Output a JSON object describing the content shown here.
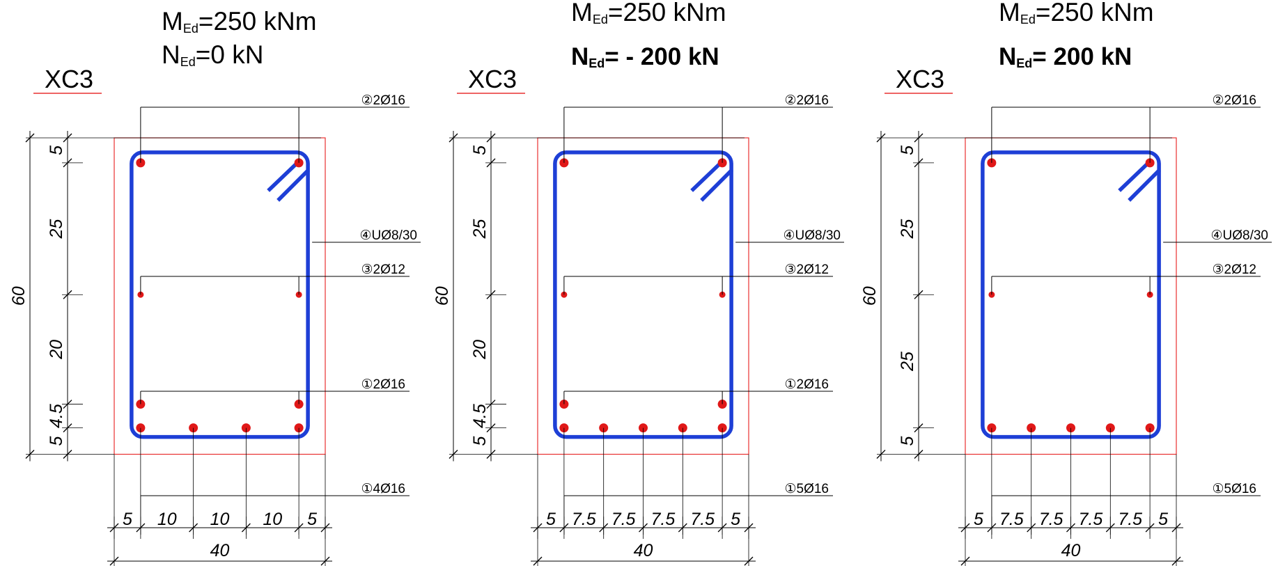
{
  "colors": {
    "stirrup": "#1e3fd6",
    "bar": "#e01818",
    "outline": "#e83030",
    "line": "#000000",
    "blue_text": "#1a2fe0",
    "red_text": "#ee1111"
  },
  "sections": [
    {
      "moment": "=250 kNm",
      "moment_symbol": "M",
      "moment_sub": "Ed",
      "axial_symbol": "N",
      "axial_sub": "Ed",
      "axial": "=0 kN",
      "axial_style": "normal",
      "exposure": "XC3",
      "labels": {
        "top_bars": "②2Ø16",
        "stirrup": "④UØ8/30",
        "mid_bars": "③2Ø12",
        "lower_bars": "①2Ø16",
        "bottom_bars": "①4Ø16"
      },
      "vertical_dims": [
        "5",
        "25",
        "20",
        "4.5",
        "5"
      ],
      "total_height": "60",
      "horizontal_dims": [
        "5",
        "10",
        "10",
        "10",
        "5"
      ],
      "total_width": "40",
      "bottom_bar_count": 4,
      "has_lower_bars": true
    },
    {
      "moment": "=250 kNm",
      "moment_symbol": "M",
      "moment_sub": "Ed",
      "axial_symbol": "N",
      "axial_sub": "Ed",
      "axial": "= - 200 kN",
      "axial_style": "blue",
      "exposure": "XC3",
      "labels": {
        "top_bars": "②2Ø16",
        "stirrup": "④UØ8/30",
        "mid_bars": "③2Ø12",
        "lower_bars": "①2Ø16",
        "bottom_bars": "①5Ø16"
      },
      "vertical_dims": [
        "5",
        "25",
        "20",
        "4.5",
        "5"
      ],
      "total_height": "60",
      "horizontal_dims": [
        "5",
        "7.5",
        "7.5",
        "7.5",
        "7.5",
        "5"
      ],
      "total_width": "40",
      "bottom_bar_count": 5,
      "has_lower_bars": true
    },
    {
      "moment": "=250 kNm",
      "moment_symbol": "M",
      "moment_sub": "Ed",
      "axial_symbol": "N",
      "axial_sub": "Ed",
      "axial": "= 200 kN",
      "axial_style": "red",
      "exposure": "XC3",
      "labels": {
        "top_bars": "②2Ø16",
        "stirrup": "④UØ8/30",
        "mid_bars": "③2Ø12",
        "bottom_bars": "①5Ø16"
      },
      "vertical_dims": [
        "5",
        "25",
        "25",
        "5"
      ],
      "total_height": "60",
      "horizontal_dims": [
        "5",
        "7.5",
        "7.5",
        "7.5",
        "7.5",
        "5"
      ],
      "total_width": "40",
      "bottom_bar_count": 5,
      "has_lower_bars": false
    }
  ]
}
